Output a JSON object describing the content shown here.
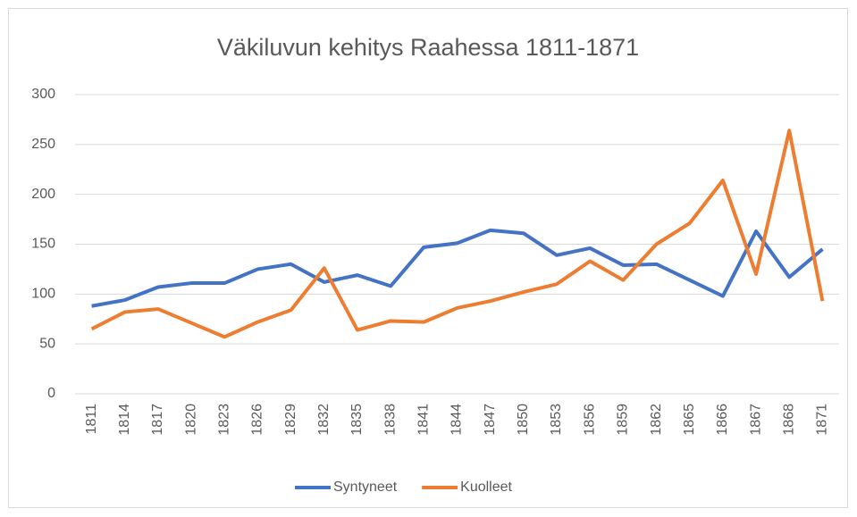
{
  "chart_data": {
    "type": "line",
    "title": "Väkiluvun kehitys Raahessa 1811-1871",
    "categories": [
      "1811",
      "1814",
      "1817",
      "1820",
      "1823",
      "1826",
      "1829",
      "1832",
      "1835",
      "1838",
      "1841",
      "1844",
      "1847",
      "1850",
      "1853",
      "1856",
      "1859",
      "1862",
      "1865",
      "1866",
      "1867",
      "1868",
      "1871"
    ],
    "series": [
      {
        "name": "Syntyneet",
        "color": "#4472c4",
        "values": [
          88,
          94,
          107,
          111,
          111,
          125,
          130,
          112,
          119,
          108,
          147,
          151,
          164,
          161,
          139,
          146,
          129,
          130,
          114,
          98,
          163,
          117,
          145
        ]
      },
      {
        "name": "Kuolleet",
        "color": "#ed7d31",
        "values": [
          65,
          82,
          85,
          71,
          57,
          72,
          84,
          126,
          64,
          73,
          72,
          86,
          93,
          102,
          110,
          133,
          114,
          150,
          171,
          214,
          120,
          264,
          93
        ]
      }
    ],
    "ylim": [
      0,
      300
    ],
    "yticks": [
      0,
      50,
      100,
      150,
      200,
      250,
      300
    ],
    "grid": true,
    "legend": "bottom"
  }
}
